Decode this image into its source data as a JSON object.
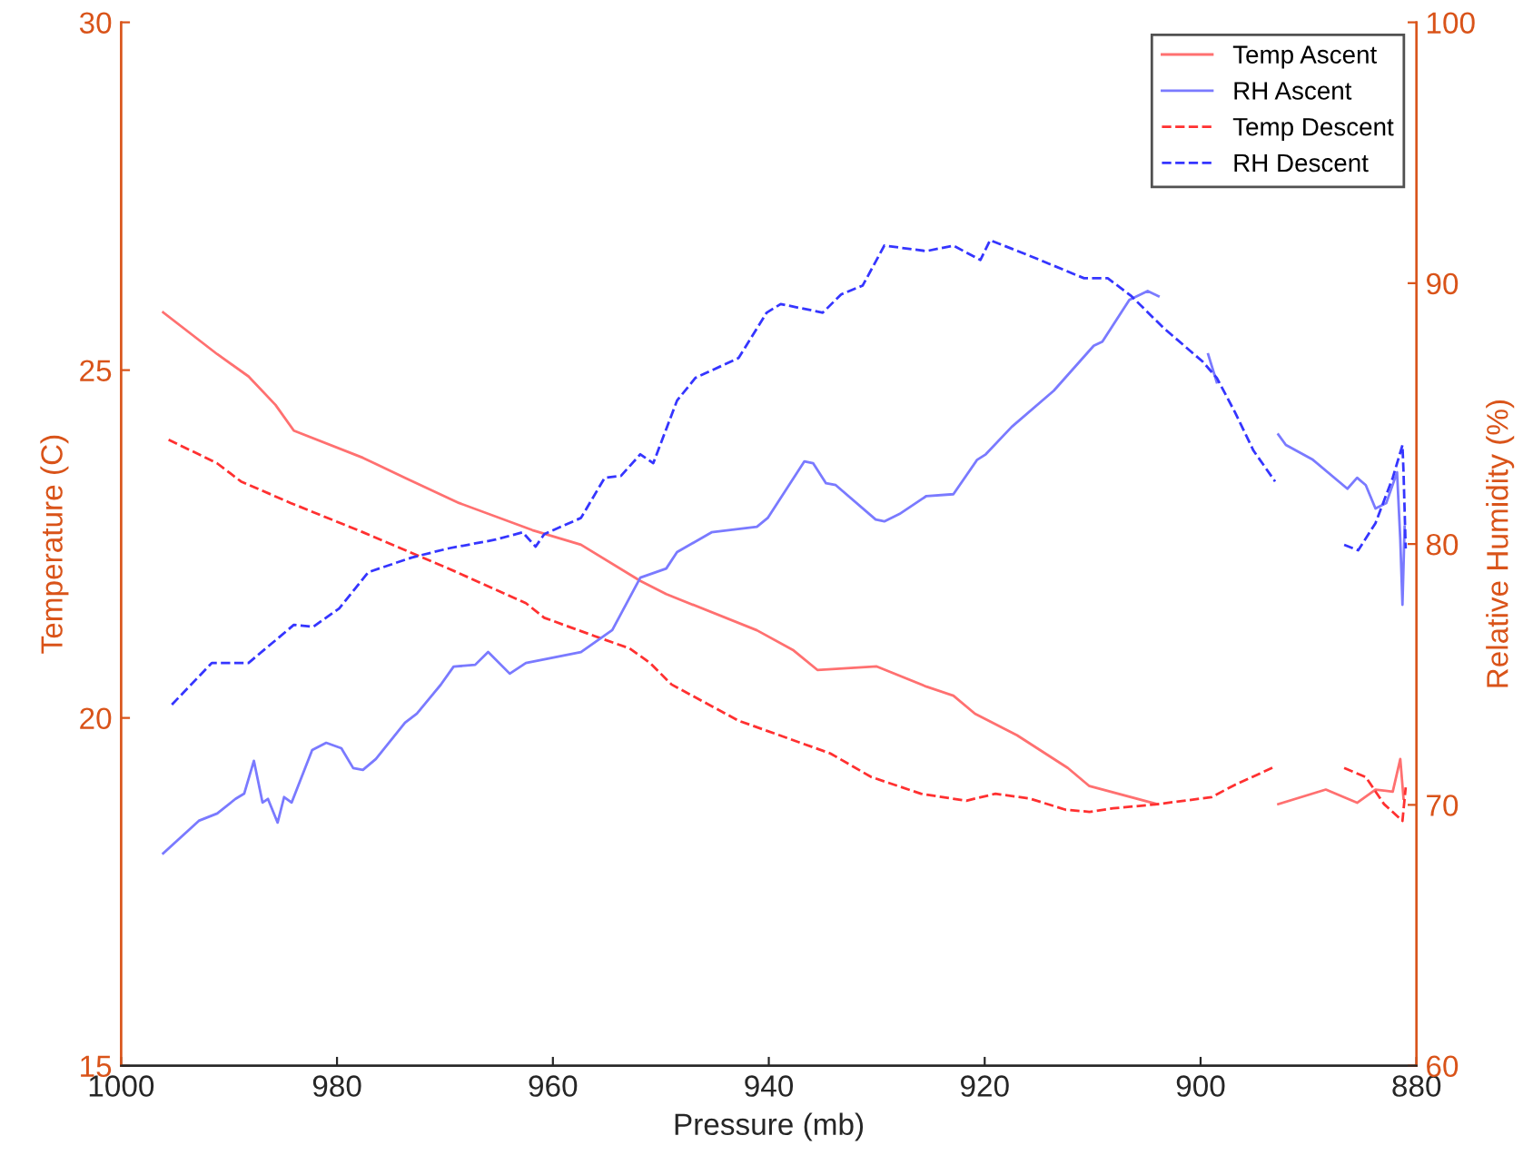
{
  "chart_data": {
    "type": "line",
    "xlabel": "Pressure (mb)",
    "ylabel": "Temperature (C)",
    "y2label": "Relative Humidity (%)",
    "xlim": [
      1000,
      880
    ],
    "xticks": [
      1000,
      980,
      960,
      940,
      920,
      900,
      880
    ],
    "ylim": [
      15,
      30
    ],
    "yticks": [
      15,
      20,
      25,
      30
    ],
    "y2lim": [
      60,
      100
    ],
    "y2ticks": [
      60,
      70,
      80,
      90,
      100
    ],
    "grid": false,
    "legend": "top right",
    "series": [
      {
        "name": "Temp Ascent",
        "color": "#ff7070",
        "line_style": "solid",
        "x": [
          996.1,
          991.1,
          988.2,
          985.7,
          984.0,
          977.6,
          973.7,
          968.7,
          961.9,
          957.4,
          951.9,
          949.5,
          941.1,
          937.7,
          935.5,
          930.0,
          925.4,
          922.9,
          920.9,
          917.0,
          912.3,
          910.3,
          904.0,
          900,
          892.8,
          888.4,
          885.5,
          883.8,
          882.2,
          881.5,
          881.2
        ],
        "values": [
          25.83,
          25.23,
          24.91,
          24.5,
          24.13,
          23.74,
          23.45,
          23.09,
          22.7,
          22.49,
          21.97,
          21.78,
          21.26,
          20.97,
          20.69,
          20.74,
          20.45,
          20.32,
          20.06,
          19.75,
          19.28,
          19.02,
          18.76,
          null,
          18.76,
          18.97,
          18.78,
          18.97,
          18.94,
          19.41,
          18.84
        ]
      },
      {
        "name": "RH Ascent",
        "color": "#7a7aff",
        "line_style": "solid",
        "axis": "y2",
        "x": [
          996.1,
          992.8,
          991.1,
          989.4,
          988.6,
          987.7,
          986.9,
          986.4,
          985.5,
          984.9,
          984.2,
          982.3,
          981.0,
          979.6,
          978.5,
          977.6,
          976.4,
          973.7,
          972.6,
          970.4,
          969.2,
          967.2,
          966.0,
          964.0,
          962.5,
          957.4,
          954.5,
          951.9,
          949.5,
          948.5,
          945.3,
          941.1,
          940.1,
          936.7,
          935.9,
          934.7,
          933.8,
          930.1,
          929.3,
          927.9,
          925.4,
          922.9,
          920.7,
          919.9,
          917.5,
          913.6,
          909.9,
          909.1,
          906.6,
          904.9,
          903.9,
          901,
          899.3,
          898.5,
          895,
          892.8,
          892.1,
          889.6,
          886.4,
          885.5,
          884.7,
          883.8,
          882.8,
          881.8,
          881.5,
          881.3,
          881.1
        ],
        "values": [
          68.14,
          69.39,
          69.67,
          70.23,
          70.43,
          71.69,
          70.09,
          70.23,
          69.32,
          70.3,
          70.09,
          72.1,
          72.38,
          72.17,
          71.41,
          71.34,
          71.76,
          73.15,
          73.5,
          74.6,
          75.3,
          75.37,
          75.86,
          75.03,
          75.44,
          75.86,
          76.7,
          78.71,
          79.06,
          79.69,
          80.45,
          80.66,
          81.0,
          83.17,
          83.1,
          82.33,
          82.26,
          80.94,
          80.87,
          81.15,
          81.84,
          81.91,
          83.23,
          83.44,
          84.49,
          85.88,
          87.6,
          87.76,
          89.36,
          89.7,
          89.5,
          null,
          87.27,
          86.2,
          null,
          84.2,
          83.8,
          83.23,
          82.12,
          82.54,
          82.26,
          81.36,
          81.57,
          82.75,
          80.17,
          77.67,
          80.66
        ]
      },
      {
        "name": "Temp Descent",
        "color": "#ff3030",
        "line_style": "dashed",
        "x": [
          995.6,
          991.1,
          988.9,
          984.3,
          977.6,
          969.7,
          962.5,
          960.8,
          956.2,
          952.9,
          951.0,
          949.0,
          942.8,
          934.3,
          930.5,
          925.9,
          921.7,
          919.0,
          915.8,
          912.5,
          910.3,
          908.1,
          904.0,
          899.0,
          896.8,
          893.1,
          890,
          886.7,
          884.7,
          883.0,
          881.3,
          881.0
        ],
        "values": [
          24.0,
          23.66,
          23.4,
          23.09,
          22.67,
          22.15,
          21.65,
          21.44,
          21.18,
          21.0,
          20.79,
          20.48,
          19.96,
          19.49,
          19.15,
          18.91,
          18.81,
          18.91,
          18.84,
          18.68,
          18.65,
          18.7,
          18.76,
          18.86,
          19.04,
          19.3,
          null,
          19.28,
          19.15,
          18.76,
          18.52,
          19.0
        ]
      },
      {
        "name": "RH Descent",
        "color": "#3535ff",
        "line_style": "dashed",
        "axis": "y2",
        "x": [
          995.3,
          991.6,
          988.2,
          984.0,
          982.2,
          979.8,
          977.1,
          973.1,
          969.7,
          965.3,
          962.8,
          961.6,
          960.8,
          957.4,
          955.2,
          953.7,
          951.9,
          950.7,
          948.5,
          946.8,
          942.8,
          940.2,
          938.9,
          935.0,
          933.3,
          931.3,
          929.3,
          925.4,
          922.9,
          920.4,
          919.5,
          915.3,
          910.8,
          908.6,
          906.4,
          903.5,
          899.8,
          898.5,
          896.8,
          895.1,
          893.1,
          890,
          886.7,
          885.4,
          883.8,
          882.2,
          881.3,
          881.2,
          881.0
        ],
        "values": [
          73.84,
          75.44,
          75.44,
          76.9,
          76.83,
          77.53,
          78.92,
          79.48,
          79.83,
          80.17,
          80.45,
          79.9,
          80.38,
          81.0,
          82.54,
          82.61,
          83.44,
          83.1,
          85.5,
          86.37,
          87.13,
          88.87,
          89.2,
          88.87,
          89.57,
          89.91,
          91.44,
          91.23,
          91.44,
          90.89,
          91.65,
          90.96,
          90.19,
          90.19,
          89.5,
          88.31,
          86.99,
          86.37,
          85.04,
          83.58,
          82.4,
          null,
          79.97,
          79.76,
          80.8,
          82.54,
          83.79,
          82.75,
          79.83
        ]
      }
    ]
  }
}
